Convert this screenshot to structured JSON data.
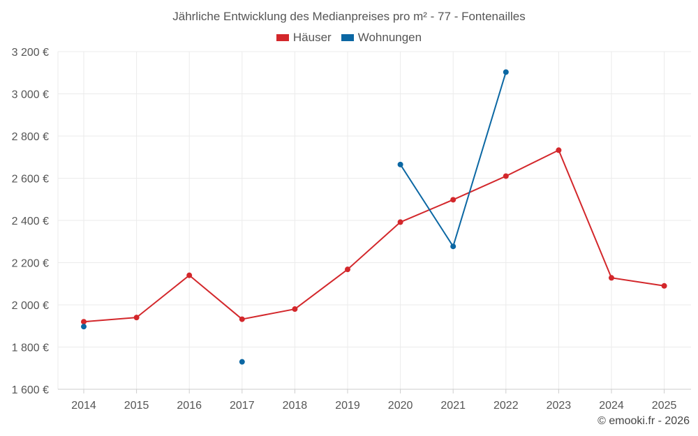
{
  "chart_data": {
    "type": "line",
    "title": "Jährliche Entwicklung des Medianpreises pro m² - 77 - Fontenailles",
    "categories": [
      "2014",
      "2015",
      "2016",
      "2017",
      "2018",
      "2019",
      "2020",
      "2021",
      "2022",
      "2023",
      "2024",
      "2025"
    ],
    "y_ticks": [
      "1 600 €",
      "1 800 €",
      "2 000 €",
      "2 200 €",
      "2 400 €",
      "2 600 €",
      "2 800 €",
      "3 000 €",
      "3 200 €"
    ],
    "ylim": [
      1600,
      3200
    ],
    "grid": true,
    "legend_position": "top-center",
    "series": [
      {
        "name": "Häuser",
        "color": "#d3272b",
        "values": [
          1920,
          1940,
          2140,
          1932,
          1980,
          2168,
          2392,
          2498,
          2610,
          2733,
          2128,
          2090
        ]
      },
      {
        "name": "Wohnungen",
        "color": "#0b67a3",
        "values": [
          1897,
          null,
          null,
          1730,
          null,
          null,
          2665,
          2277,
          3103,
          null,
          null,
          null
        ]
      }
    ]
  },
  "credit": "© emooki.fr - 2026"
}
